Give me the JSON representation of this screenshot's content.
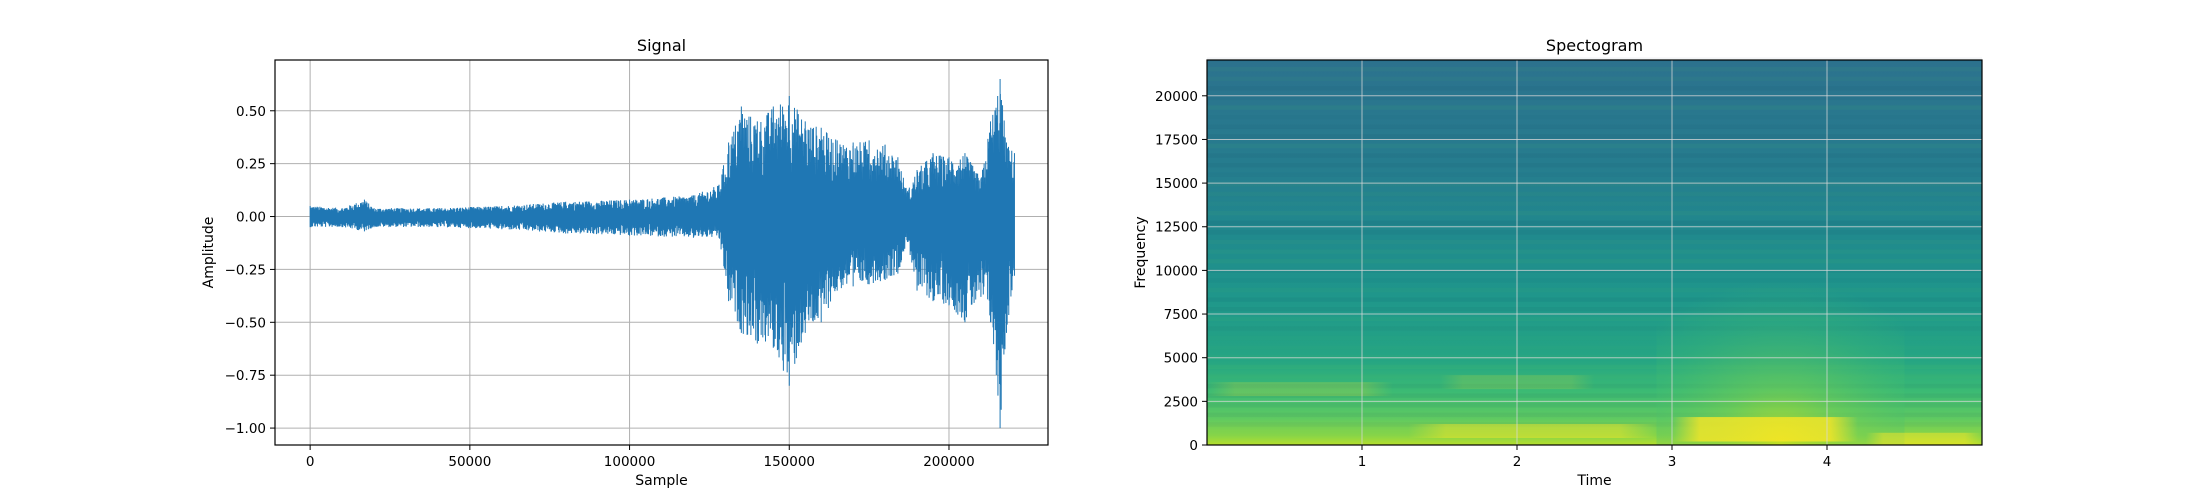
{
  "chart_data": [
    {
      "type": "line",
      "title": "Signal",
      "xlabel": "Sample",
      "ylabel": "Amplitude",
      "xlim": [
        -11000,
        231000
      ],
      "ylim": [
        -1.08,
        0.74
      ],
      "xticks": [
        0,
        50000,
        100000,
        150000,
        200000
      ],
      "xtick_labels": [
        "0",
        "50000",
        "100000",
        "150000",
        "200000"
      ],
      "yticks": [
        0.5,
        0.25,
        0.0,
        -0.25,
        -0.5,
        -0.75,
        -1.0
      ],
      "ytick_labels": [
        "0.50",
        "0.25",
        "0.00",
        "−0.25",
        "−0.50",
        "−0.75",
        "−1.00"
      ],
      "grid": true,
      "color": "#1f77b4",
      "envelope": {
        "sample": [
          0,
          10000,
          17000,
          20000,
          40000,
          60000,
          80000,
          100000,
          120000,
          128000,
          131000,
          135000,
          140000,
          145000,
          150000,
          155000,
          160000,
          165000,
          170000,
          175000,
          180000,
          184000,
          187000,
          190000,
          195000,
          200000,
          205000,
          210000,
          213000,
          216000,
          218000,
          220500
        ],
        "max": [
          0.05,
          0.04,
          0.08,
          0.04,
          0.04,
          0.05,
          0.07,
          0.08,
          0.1,
          0.15,
          0.35,
          0.52,
          0.45,
          0.52,
          0.57,
          0.45,
          0.42,
          0.36,
          0.35,
          0.36,
          0.34,
          0.28,
          0.12,
          0.22,
          0.3,
          0.28,
          0.3,
          0.18,
          0.45,
          0.65,
          0.35,
          0.3
        ],
        "min": [
          -0.05,
          -0.05,
          -0.07,
          -0.05,
          -0.05,
          -0.06,
          -0.08,
          -0.09,
          -0.1,
          -0.1,
          -0.4,
          -0.55,
          -0.6,
          -0.62,
          -0.8,
          -0.55,
          -0.5,
          -0.35,
          -0.33,
          -0.32,
          -0.3,
          -0.27,
          -0.12,
          -0.35,
          -0.4,
          -0.42,
          -0.5,
          -0.38,
          -0.5,
          -1.0,
          -0.55,
          -0.28
        ]
      }
    },
    {
      "type": "heatmap",
      "title": "Spectogram",
      "xlabel": "Time",
      "ylabel": "Frequency",
      "xlim": [
        0,
        5.0
      ],
      "ylim": [
        0,
        22050
      ],
      "xticks": [
        1,
        2,
        3,
        4
      ],
      "xtick_labels": [
        "1",
        "2",
        "3",
        "4"
      ],
      "yticks": [
        0,
        2500,
        5000,
        7500,
        10000,
        12500,
        15000,
        17500,
        20000
      ],
      "ytick_labels": [
        "0",
        "2500",
        "5000",
        "7500",
        "10000",
        "12500",
        "15000",
        "17500",
        "20000"
      ],
      "grid": true,
      "colormap": "viridis",
      "colormap_stops": [
        "#440154",
        "#3b528b",
        "#21918c",
        "#5ec962",
        "#fde725"
      ]
    }
  ]
}
